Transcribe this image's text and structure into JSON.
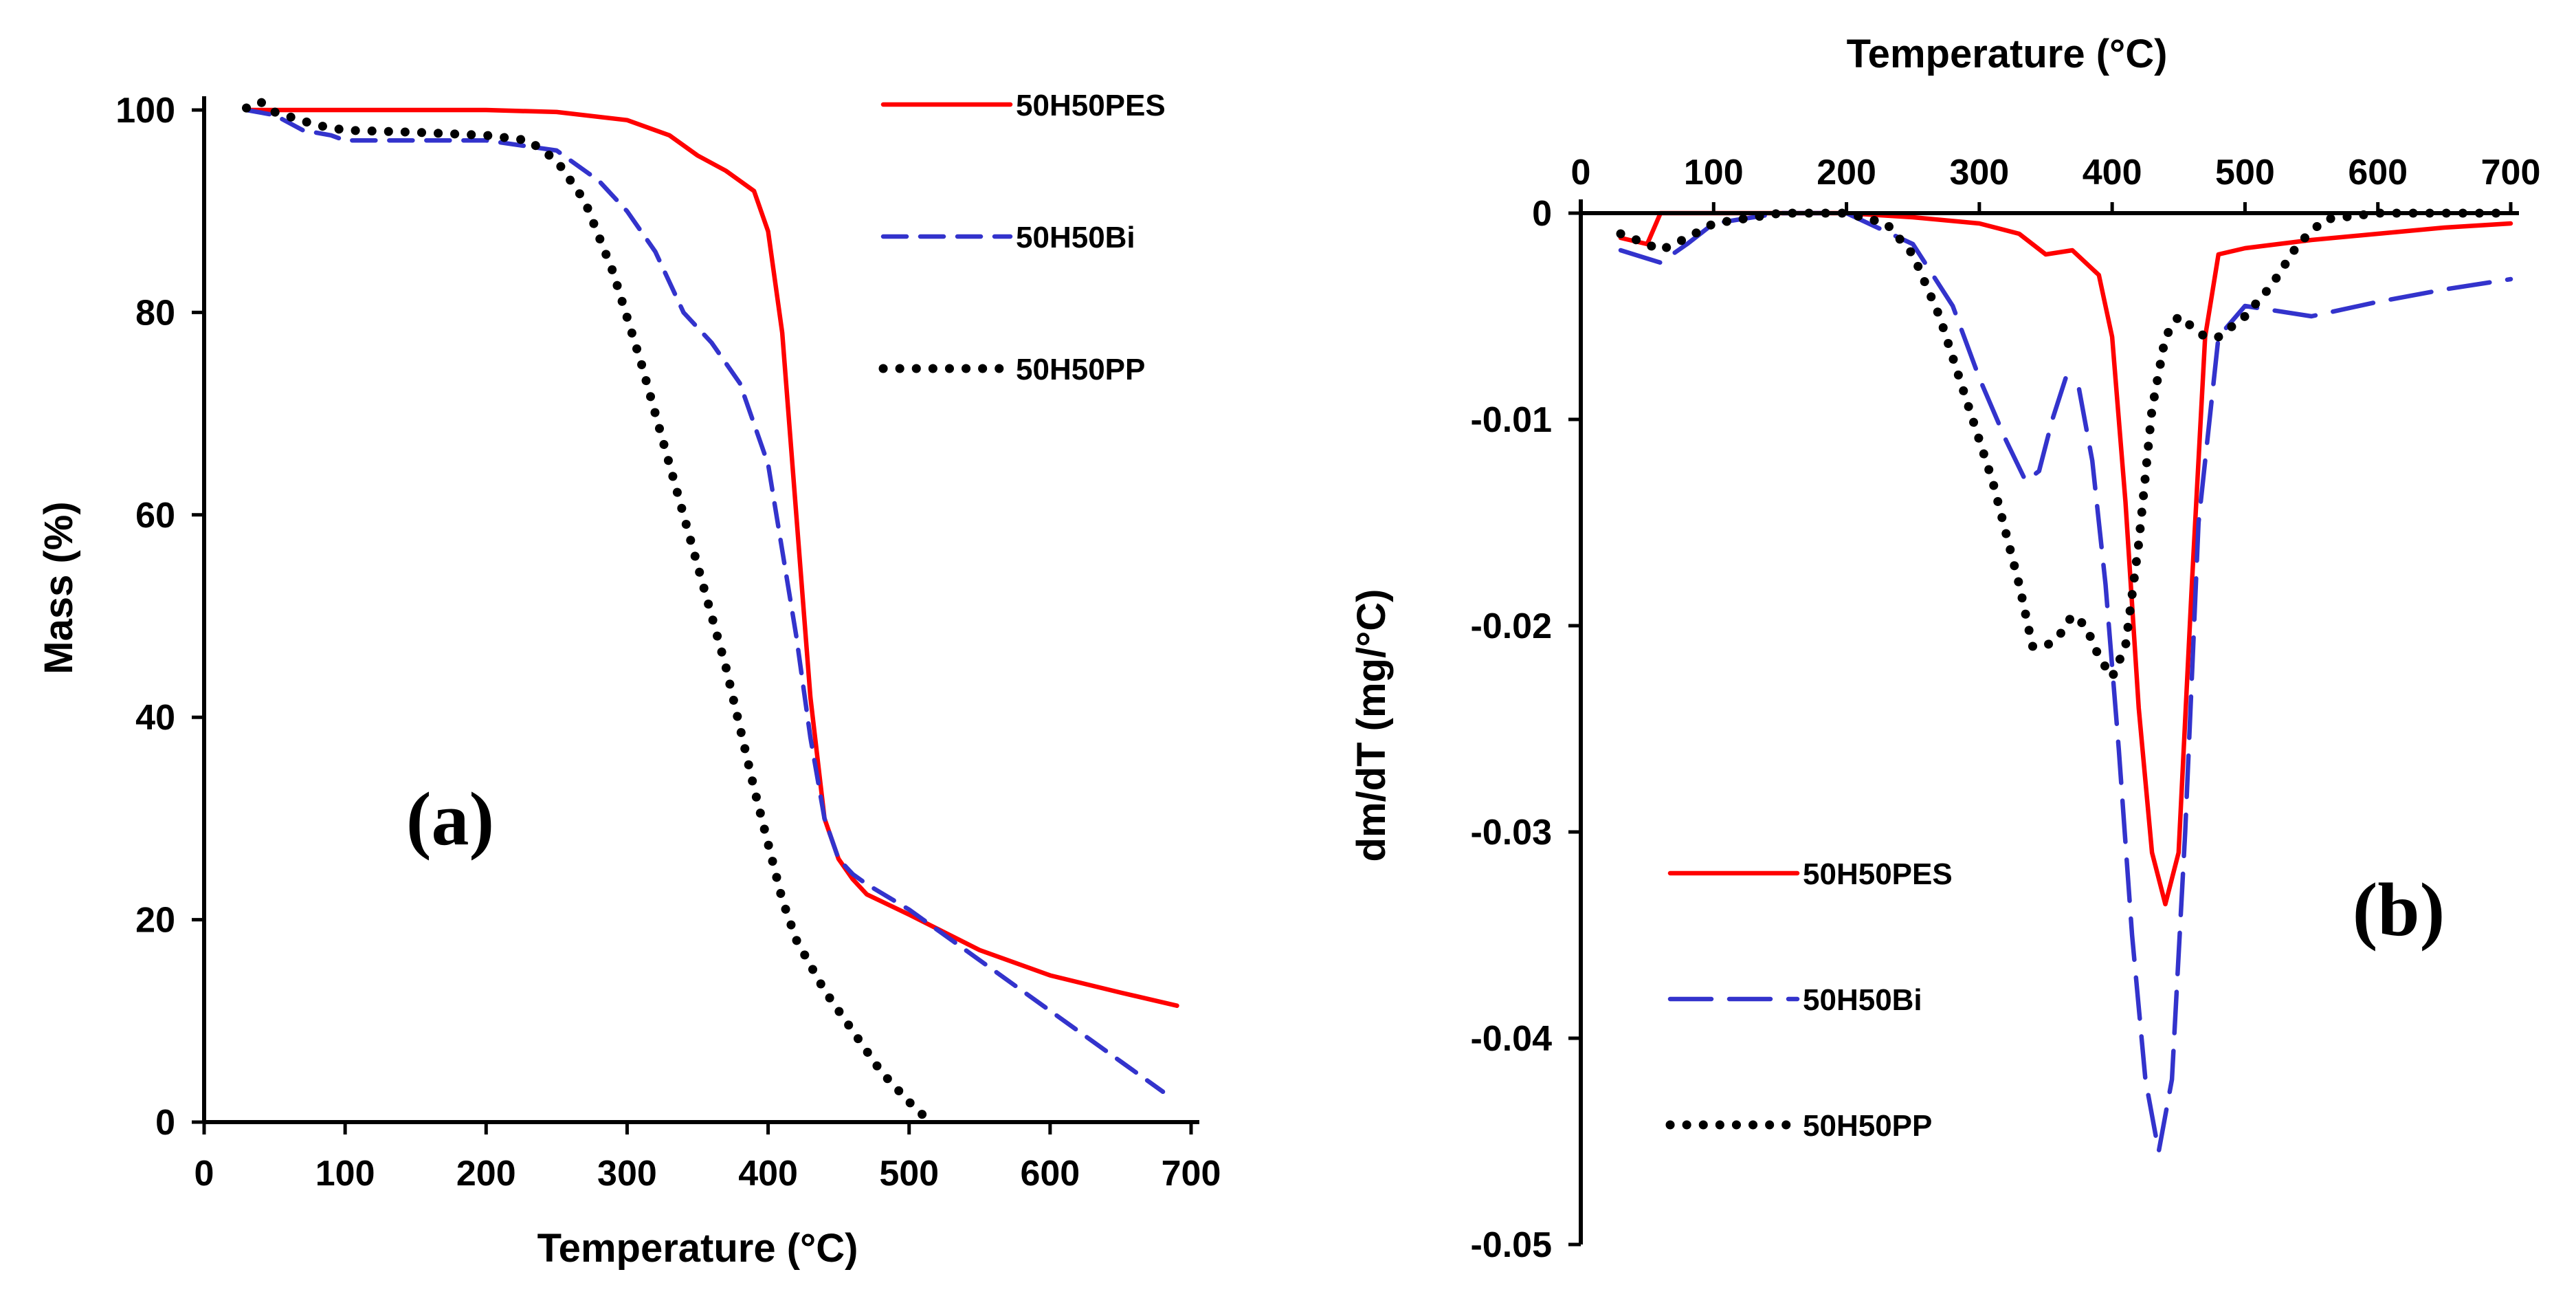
{
  "chart_data": [
    {
      "type": "line",
      "panel_label": "(a)",
      "xlabel": "Temperature (°C)",
      "ylabel": "Mass (%)",
      "xlim": [
        0,
        700
      ],
      "ylim": [
        0,
        100
      ],
      "xticks": [
        0,
        100,
        200,
        300,
        400,
        500,
        600,
        700
      ],
      "yticks": [
        0,
        20,
        40,
        60,
        80,
        100
      ],
      "legend": "top-right",
      "grid": false,
      "series": [
        {
          "name": "50H50PES",
          "color": "#ff0000",
          "style": "solid",
          "x": [
            30,
            100,
            200,
            250,
            300,
            330,
            350,
            370,
            390,
            400,
            410,
            420,
            430,
            440,
            450,
            460,
            470,
            500,
            550,
            600,
            650,
            690
          ],
          "y": [
            100,
            100,
            100,
            99.8,
            99,
            97.5,
            95.5,
            94,
            92,
            88,
            78,
            60,
            42,
            30,
            26,
            24,
            22.5,
            20.5,
            17,
            14.5,
            12.8,
            11.5
          ]
        },
        {
          "name": "50H50Bi",
          "color": "#3333cc",
          "style": "dashed",
          "x": [
            30,
            50,
            70,
            90,
            100,
            150,
            200,
            250,
            280,
            300,
            320,
            340,
            360,
            380,
            400,
            420,
            430,
            440,
            450,
            460,
            470,
            500,
            550,
            600,
            650,
            680
          ],
          "y": [
            100,
            99.5,
            98,
            97.5,
            97,
            97,
            97,
            96,
            93,
            90,
            86,
            80,
            77,
            73,
            65,
            48,
            38,
            30,
            26,
            24.5,
            23.5,
            21,
            16,
            11,
            6,
            3
          ]
        },
        {
          "name": "50H50PP",
          "color": "#000000",
          "style": "dotted",
          "x": [
            30,
            40,
            50,
            80,
            100,
            150,
            200,
            230,
            250,
            270,
            290,
            310,
            330,
            350,
            370,
            390,
            410,
            420,
            440,
            460,
            480,
            500,
            515
          ],
          "y": [
            100.2,
            100.8,
            99.8,
            98.5,
            98,
            97.8,
            97.5,
            97,
            95,
            91,
            84,
            75,
            65,
            55,
            45,
            33,
            22,
            18,
            13,
            9,
            5,
            2,
            0
          ]
        }
      ]
    },
    {
      "type": "line",
      "panel_label": "(b)",
      "xlabel": "Temperature (°C)",
      "ylabel": "dm/dT (mg/°C)",
      "xlim": [
        0,
        700
      ],
      "ylim": [
        -0.05,
        0
      ],
      "xticks": [
        0,
        100,
        200,
        300,
        400,
        500,
        600,
        700
      ],
      "yticks": [
        0,
        -0.01,
        -0.02,
        -0.03,
        -0.04,
        -0.05
      ],
      "ytick_labels": [
        "0",
        "-0.01",
        "-0.02",
        "-0.03",
        "-0.04",
        "-0.05"
      ],
      "xaxis_position": "top",
      "legend": "bottom-left",
      "grid": false,
      "series": [
        {
          "name": "50H50PES",
          "color": "#ff0000",
          "style": "solid",
          "x": [
            30,
            50,
            60,
            100,
            200,
            250,
            300,
            330,
            350,
            370,
            390,
            400,
            410,
            420,
            430,
            440,
            450,
            460,
            470,
            480,
            500,
            550,
            600,
            650,
            700
          ],
          "y": [
            -0.0012,
            -0.0015,
            0,
            0,
            0,
            -0.0002,
            -0.0005,
            -0.001,
            -0.002,
            -0.0018,
            -0.003,
            -0.006,
            -0.014,
            -0.024,
            -0.031,
            -0.0335,
            -0.031,
            -0.018,
            -0.006,
            -0.002,
            -0.0017,
            -0.0013,
            -0.001,
            -0.0007,
            -0.0005
          ]
        },
        {
          "name": "50H50Bi",
          "color": "#3333cc",
          "style": "longdash",
          "x": [
            30,
            50,
            60,
            80,
            100,
            150,
            200,
            250,
            280,
            300,
            320,
            335,
            345,
            355,
            365,
            375,
            385,
            395,
            405,
            415,
            425,
            435,
            445,
            455,
            465,
            480,
            500,
            550,
            600,
            650,
            700
          ],
          "y": [
            -0.0018,
            -0.0022,
            -0.0024,
            -0.0015,
            -0.0005,
            0,
            0,
            -0.0015,
            -0.0045,
            -0.008,
            -0.011,
            -0.013,
            -0.0125,
            -0.01,
            -0.008,
            -0.0085,
            -0.012,
            -0.018,
            -0.026,
            -0.035,
            -0.042,
            -0.0455,
            -0.042,
            -0.03,
            -0.015,
            -0.006,
            -0.0045,
            -0.005,
            -0.0043,
            -0.0037,
            -0.0032
          ]
        },
        {
          "name": "50H50PP",
          "color": "#000000",
          "style": "dotted",
          "x": [
            30,
            50,
            60,
            80,
            100,
            150,
            200,
            230,
            250,
            270,
            290,
            310,
            330,
            340,
            350,
            360,
            370,
            380,
            390,
            400,
            410,
            420,
            430,
            440,
            450,
            460,
            470,
            480,
            500,
            520,
            540,
            560,
            600,
            650,
            700
          ],
          "y": [
            -0.001,
            -0.0015,
            -0.0018,
            -0.0012,
            -0.0005,
            0,
            0,
            -0.0005,
            -0.002,
            -0.005,
            -0.009,
            -0.013,
            -0.018,
            -0.021,
            -0.021,
            -0.0205,
            -0.0195,
            -0.02,
            -0.0215,
            -0.0225,
            -0.021,
            -0.016,
            -0.0095,
            -0.006,
            -0.005,
            -0.0055,
            -0.006,
            -0.006,
            -0.005,
            -0.0035,
            -0.0015,
            -0.0003,
            0,
            0,
            0
          ]
        }
      ]
    }
  ]
}
